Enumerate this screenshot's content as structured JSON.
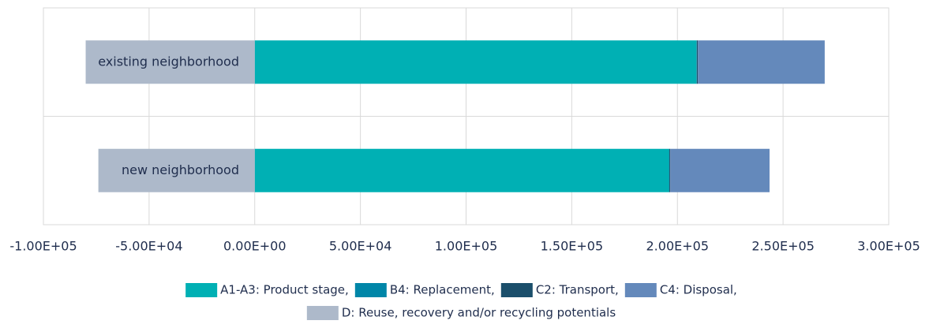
{
  "chart_data": {
    "type": "stacked_barh",
    "categories": [
      "existing neighborhood",
      "new neighborhood"
    ],
    "series": [
      {
        "name": "A1-A3: Product stage,",
        "color": "#00b0b4",
        "values": [
          209000,
          196000
        ]
      },
      {
        "name": "B4: Replacement,",
        "color": "#0086a8",
        "values": [
          200,
          200
        ]
      },
      {
        "name": "C2: Transport,",
        "color": "#1b4f6b",
        "values": [
          500,
          400
        ]
      },
      {
        "name": "C4: Disposal,",
        "color": "#6489bb",
        "values": [
          60000,
          47000
        ]
      },
      {
        "name": "D: Reuse, recovery and/or recycling potentials",
        "color": "#adb9ca",
        "values": [
          -80000,
          -74000
        ]
      }
    ],
    "xlim": [
      -100000,
      300000
    ],
    "xticks": [
      {
        "value": -100000,
        "label": "-1.00E+05"
      },
      {
        "value": -50000,
        "label": "-5.00E+04"
      },
      {
        "value": 0,
        "label": "0.00E+00"
      },
      {
        "value": 50000,
        "label": "5.00E+04"
      },
      {
        "value": 100000,
        "label": "1.00E+05"
      },
      {
        "value": 150000,
        "label": "1.50E+05"
      },
      {
        "value": 200000,
        "label": "2.00E+05"
      },
      {
        "value": 250000,
        "label": "2.50E+05"
      },
      {
        "value": 300000,
        "label": "3.00E+05"
      }
    ],
    "grid": true,
    "legend": "bottom"
  }
}
